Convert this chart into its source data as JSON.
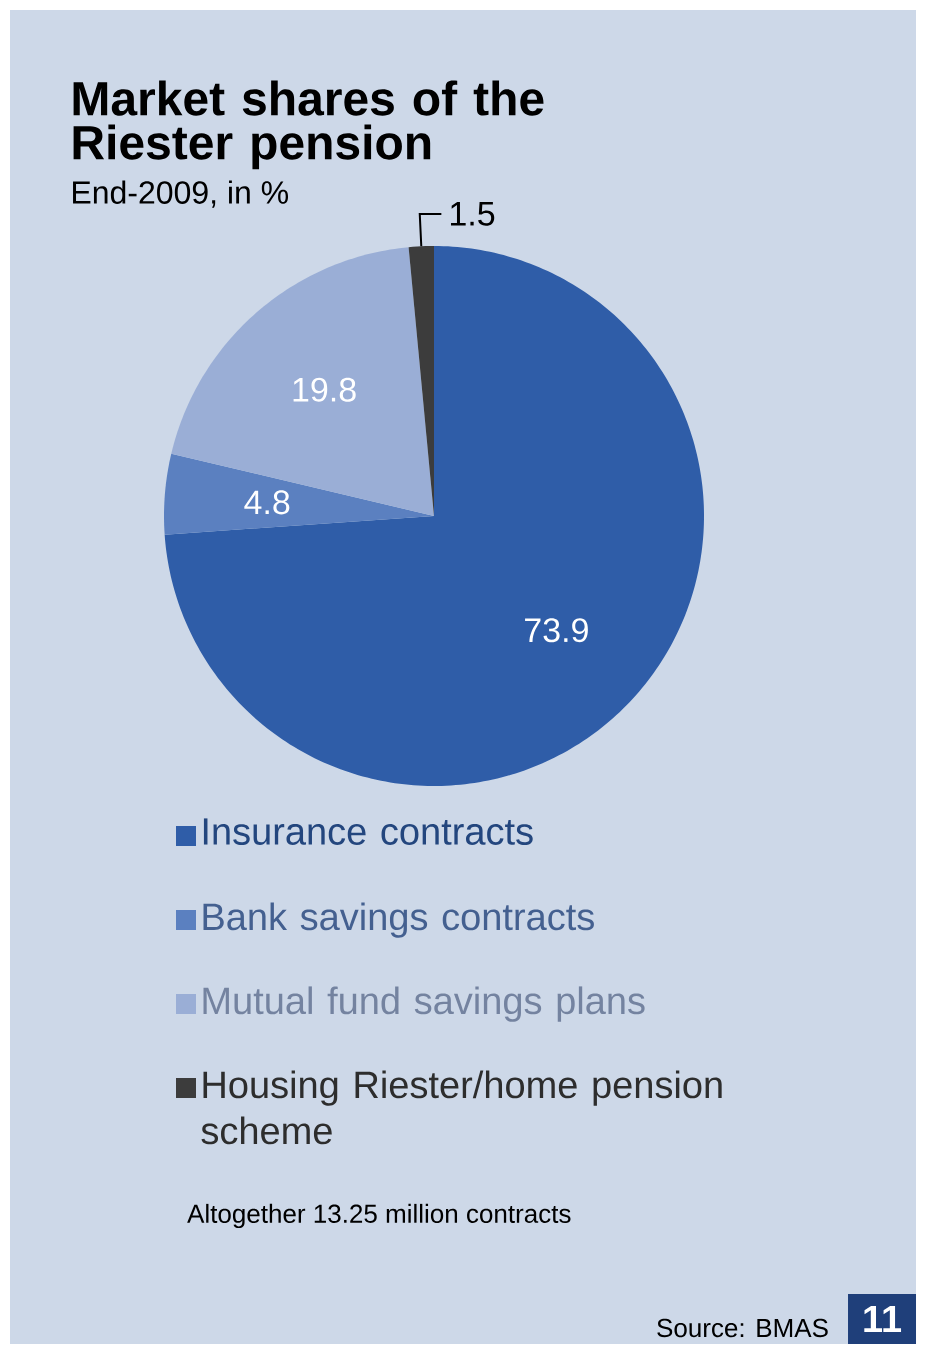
{
  "chart_data": {
    "type": "pie",
    "title": "Market shares of the Riester pension",
    "subtitle": "End-2009, in %",
    "categories": [
      "Insurance contracts",
      "Bank savings contracts",
      "Mutual fund savings plans",
      "Housing Riester/home pension scheme"
    ],
    "values": [
      73.9,
      4.8,
      19.8,
      1.5
    ],
    "colors": [
      "#2f5da8",
      "#5b80c0",
      "#9aaed6",
      "#3c3c3c"
    ],
    "data_labels": true,
    "legend": "bottom",
    "annotations": [
      "Altogether 13.25 million contracts",
      "Source: BMAS",
      "11"
    ]
  }
}
